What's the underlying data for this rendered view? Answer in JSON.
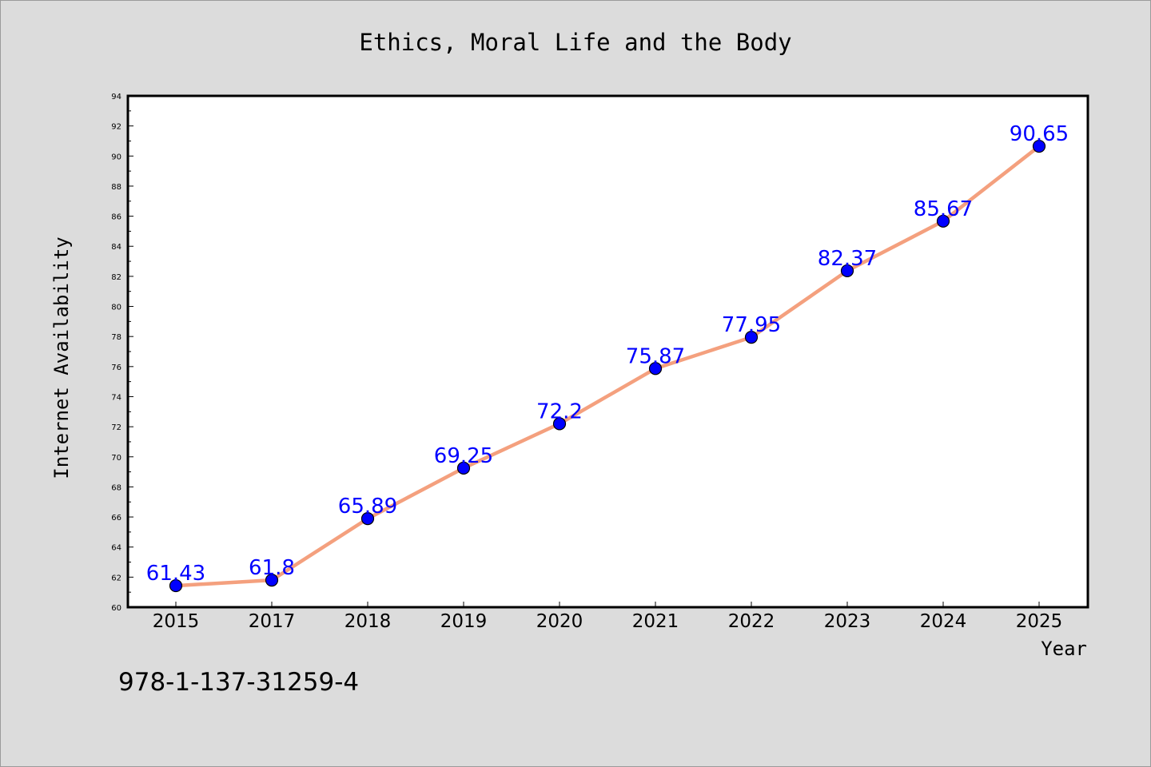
{
  "chart_data": {
    "type": "line",
    "title": "Ethics, Moral Life and the Body",
    "xlabel": "Year",
    "ylabel": "Internet Availability",
    "categories": [
      "2015",
      "2017",
      "2018",
      "2019",
      "2020",
      "2021",
      "2022",
      "2023",
      "2024",
      "2025"
    ],
    "series": [
      {
        "values": [
          61.43,
          61.8,
          65.89,
          69.25,
          72.2,
          75.87,
          77.95,
          82.37,
          85.67,
          90.65
        ],
        "labels": [
          "61.43",
          "61.8",
          "65.89",
          "69.25",
          "72.2",
          "75.87",
          "77.95",
          "82.37",
          "85.67",
          "90.65"
        ]
      }
    ],
    "ylim": [
      60,
      94
    ],
    "yticks": [
      "60",
      "62",
      "64",
      "66",
      "68",
      "70",
      "72",
      "74",
      "76",
      "78",
      "80",
      "82",
      "84",
      "86",
      "88",
      "90",
      "92",
      "94"
    ],
    "grid": false,
    "line_color": "#f4a07e",
    "marker_color": "#0000ff"
  },
  "annotation": {
    "isbn": "978-1-137-31259-4"
  }
}
